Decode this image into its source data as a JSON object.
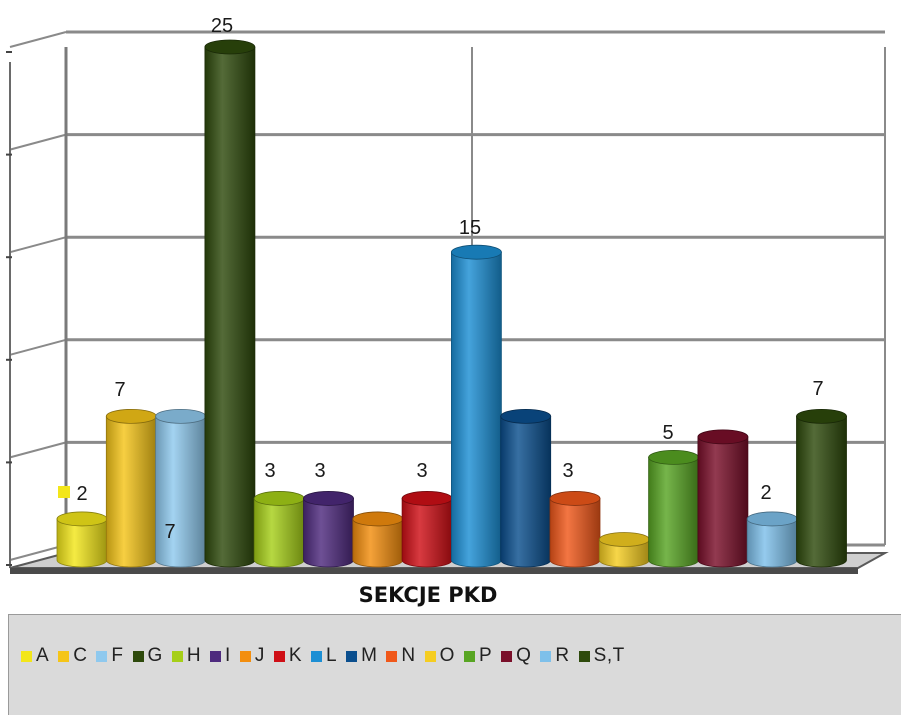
{
  "chart_data": {
    "type": "bar",
    "title": "",
    "xlabel": "SEKCJE PKD",
    "ylabel": "",
    "ylim": [
      0,
      25
    ],
    "grid": true,
    "legend_position": "bottom",
    "categories": [
      "A",
      "C",
      "F",
      "G",
      "H",
      "I",
      "J",
      "K",
      "L",
      "M",
      "N",
      "O",
      "P",
      "Q",
      "R",
      "S,T"
    ],
    "values": [
      2,
      7,
      7,
      25,
      3,
      3,
      2,
      3,
      15,
      7,
      3,
      1,
      5,
      6,
      2,
      7
    ],
    "data_labels": [
      "2",
      "7",
      "7",
      "25",
      "3",
      "3",
      "",
      "3",
      "15",
      "",
      "3",
      "",
      "5",
      "",
      "2",
      "7"
    ],
    "colors": [
      "#f3e61a",
      "#f5c518",
      "#8fc9ee",
      "#2e4a0c",
      "#a6cf18",
      "#4e2a7e",
      "#f38e0e",
      "#cf0f16",
      "#1c8fd4",
      "#0b4f8e",
      "#f0581a",
      "#f5cd21",
      "#58a523",
      "#7a0f2a",
      "#7ec0ea",
      "#2e4a0c"
    ]
  }
}
